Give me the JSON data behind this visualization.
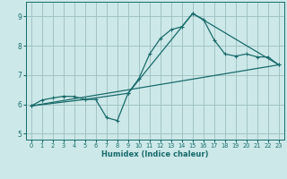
{
  "xlabel": "Humidex (Indice chaleur)",
  "background_color": "#cce8e8",
  "grid_color": "#9dbfbf",
  "line_color": "#1a6b6b",
  "xlim": [
    -0.5,
    23.5
  ],
  "ylim": [
    4.8,
    9.5
  ],
  "xticks": [
    0,
    1,
    2,
    3,
    4,
    5,
    6,
    7,
    8,
    9,
    10,
    11,
    12,
    13,
    14,
    15,
    16,
    17,
    18,
    19,
    20,
    21,
    22,
    23
  ],
  "yticks": [
    5,
    6,
    7,
    8,
    9
  ],
  "curve1_x": [
    0,
    1,
    2,
    3,
    4,
    5,
    6,
    7,
    8,
    9,
    10,
    11,
    12,
    13,
    14,
    15,
    16,
    17,
    18,
    19,
    20,
    21,
    22,
    23
  ],
  "curve1_y": [
    5.95,
    6.15,
    6.22,
    6.28,
    6.27,
    6.17,
    6.17,
    5.55,
    5.45,
    6.38,
    6.88,
    7.72,
    8.25,
    8.55,
    8.65,
    9.1,
    8.9,
    8.2,
    7.72,
    7.65,
    7.72,
    7.62,
    7.62,
    7.35
  ],
  "curve2_x": [
    0,
    23
  ],
  "curve2_y": [
    5.95,
    7.35
  ],
  "curve3_x": [
    0,
    5,
    9,
    15,
    23
  ],
  "curve3_y": [
    5.95,
    6.17,
    6.38,
    9.1,
    7.35
  ]
}
